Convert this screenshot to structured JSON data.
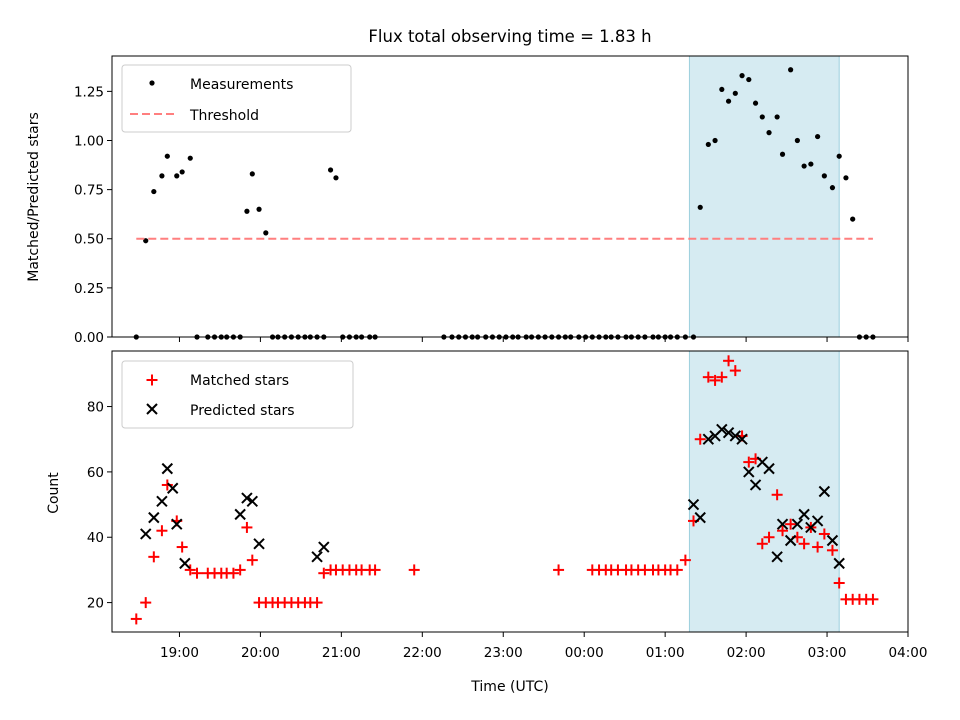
{
  "chart_data": [
    {
      "type": "scatter",
      "title": "Flux total observing time = 1.83 h",
      "xlabel": "",
      "ylabel": "Matched/Predicted stars",
      "xlim": [
        "18:10",
        "04:00"
      ],
      "ylim": [
        0,
        1.43
      ],
      "yticks": [
        0.0,
        0.25,
        0.5,
        0.75,
        1.0,
        1.25
      ],
      "ytick_labels": [
        "0.00",
        "0.25",
        "0.50",
        "0.75",
        "1.00",
        "1.25"
      ],
      "legend_position": "top-left",
      "highlight_span": [
        "01:18",
        "03:09"
      ],
      "series": [
        {
          "name": "Measurements",
          "marker": "dot",
          "color": "#000000",
          "x": [
            "18:28",
            "18:35",
            "18:41",
            "18:47",
            "18:51",
            "18:58",
            "19:02",
            "19:08",
            "19:13",
            "19:21",
            "19:26",
            "19:31",
            "19:35",
            "19:40",
            "19:45",
            "19:50",
            "19:54",
            "19:59",
            "20:04",
            "20:09",
            "20:13",
            "20:18",
            "20:23",
            "20:28",
            "20:33",
            "20:37",
            "20:42",
            "20:47",
            "20:52",
            "20:56",
            "21:01",
            "21:06",
            "21:11",
            "21:15",
            "21:21",
            "21:25",
            "22:16",
            "22:22",
            "22:27",
            "22:32",
            "22:37",
            "22:41",
            "22:47",
            "22:52",
            "22:57",
            "23:02",
            "23:07",
            "23:11",
            "23:17",
            "23:21",
            "23:26",
            "23:31",
            "23:36",
            "23:41",
            "23:46",
            "23:50",
            "23:56",
            "00:01",
            "00:06",
            "00:11",
            "00:16",
            "00:20",
            "00:25",
            "00:31",
            "00:35",
            "00:40",
            "00:45",
            "00:51",
            "00:55",
            "01:00",
            "01:04",
            "01:09",
            "01:15",
            "01:21",
            "01:26",
            "01:32",
            "01:37",
            "01:42",
            "01:47",
            "01:52",
            "01:57",
            "02:02",
            "02:07",
            "02:12",
            "02:17",
            "02:23",
            "02:27",
            "02:33",
            "02:38",
            "02:43",
            "02:48",
            "02:53",
            "02:58",
            "03:04",
            "03:09",
            "03:14",
            "03:19",
            "03:24",
            "03:29",
            "03:34"
          ],
          "y": [
            0.0,
            0.49,
            0.74,
            0.82,
            0.92,
            0.82,
            0.84,
            0.91,
            0.0,
            0.0,
            0.0,
            0.0,
            0.0,
            0.0,
            0.0,
            0.64,
            0.83,
            0.65,
            0.53,
            0.0,
            0.0,
            0.0,
            0.0,
            0.0,
            0.0,
            0.0,
            0.0,
            0.0,
            0.85,
            0.81,
            0.0,
            0.0,
            0.0,
            0.0,
            0.0,
            0.0,
            0.0,
            0.0,
            0.0,
            0.0,
            0.0,
            0.0,
            0.0,
            0.0,
            0.0,
            0.0,
            0.0,
            0.0,
            0.0,
            0.0,
            0.0,
            0.0,
            0.0,
            0.0,
            0.0,
            0.0,
            0.0,
            0.0,
            0.0,
            0.0,
            0.0,
            0.0,
            0.0,
            0.0,
            0.0,
            0.0,
            0.0,
            0.0,
            0.0,
            0.0,
            0.0,
            0.0,
            0.0,
            0.0,
            0.66,
            0.98,
            1.0,
            1.26,
            1.2,
            1.24,
            1.33,
            1.31,
            1.19,
            1.12,
            1.04,
            1.12,
            0.93,
            1.36,
            1.0,
            0.87,
            0.88,
            1.02,
            0.82,
            0.76,
            0.92,
            0.81,
            0.6,
            0.0,
            0.0,
            0.0
          ]
        },
        {
          "name": "Threshold",
          "marker": "dashed-line",
          "color": "#ff7f7f",
          "x": [
            "18:28",
            "03:34"
          ],
          "y": [
            0.5,
            0.5
          ]
        }
      ]
    },
    {
      "type": "scatter",
      "title": "",
      "xlabel": "Time (UTC)",
      "ylabel": "Count",
      "xlim": [
        "18:10",
        "04:00"
      ],
      "ylim": [
        11,
        97
      ],
      "yticks": [
        20,
        40,
        60,
        80
      ],
      "ytick_labels": [
        "20",
        "40",
        "60",
        "80"
      ],
      "xticks": [
        "19:00",
        "20:00",
        "21:00",
        "22:00",
        "23:00",
        "00:00",
        "01:00",
        "02:00",
        "03:00",
        "04:00"
      ],
      "legend_position": "top-left",
      "highlight_span": [
        "01:18",
        "03:09"
      ],
      "series": [
        {
          "name": "Matched stars",
          "marker": "plus",
          "color": "#ff0000",
          "x": [
            "18:28",
            "18:35",
            "18:41",
            "18:47",
            "18:51",
            "18:58",
            "19:02",
            "19:08",
            "19:13",
            "19:21",
            "19:26",
            "19:31",
            "19:35",
            "19:40",
            "19:45",
            "19:50",
            "19:54",
            "19:59",
            "20:04",
            "20:09",
            "20:13",
            "20:18",
            "20:23",
            "20:28",
            "20:33",
            "20:37",
            "20:42",
            "20:47",
            "20:52",
            "20:56",
            "21:01",
            "21:06",
            "21:11",
            "21:15",
            "21:21",
            "21:25",
            "21:54",
            "23:41",
            "00:06",
            "00:11",
            "00:16",
            "00:20",
            "00:25",
            "00:31",
            "00:35",
            "00:40",
            "00:45",
            "00:51",
            "00:55",
            "01:00",
            "01:04",
            "01:09",
            "01:15",
            "01:21",
            "01:26",
            "01:32",
            "01:37",
            "01:42",
            "01:47",
            "01:52",
            "01:57",
            "02:02",
            "02:07",
            "02:12",
            "02:17",
            "02:23",
            "02:27",
            "02:33",
            "02:38",
            "02:43",
            "02:48",
            "02:53",
            "02:58",
            "03:04",
            "03:09",
            "03:14",
            "03:19",
            "03:24",
            "03:29",
            "03:34"
          ],
          "y": [
            15,
            20,
            34,
            42,
            56,
            45,
            37,
            30,
            29,
            29,
            29,
            29,
            29,
            29,
            30,
            43,
            33,
            20,
            20,
            20,
            20,
            20,
            20,
            20,
            20,
            20,
            20,
            29,
            30,
            30,
            30,
            30,
            30,
            30,
            30,
            30,
            30,
            30,
            30,
            30,
            30,
            30,
            30,
            30,
            30,
            30,
            30,
            30,
            30,
            30,
            30,
            30,
            33,
            45,
            70,
            89,
            88,
            89,
            94,
            91,
            71,
            63,
            64,
            38,
            40,
            53,
            42,
            44,
            40,
            38,
            43,
            37,
            41,
            36,
            26,
            21,
            21,
            21,
            21,
            21
          ]
        },
        {
          "name": "Predicted stars",
          "marker": "x",
          "color": "#000000",
          "x": [
            "18:35",
            "18:41",
            "18:47",
            "18:51",
            "18:55",
            "18:58",
            "19:04",
            "19:45",
            "19:50",
            "19:54",
            "19:59",
            "20:42",
            "20:47",
            "01:21",
            "01:26",
            "01:32",
            "01:37",
            "01:42",
            "01:47",
            "01:52",
            "01:57",
            "02:02",
            "02:07",
            "02:12",
            "02:17",
            "02:23",
            "02:27",
            "02:33",
            "02:38",
            "02:43",
            "02:48",
            "02:53",
            "02:58",
            "03:04",
            "03:09"
          ],
          "y": [
            41,
            46,
            51,
            61,
            55,
            44,
            32,
            47,
            52,
            51,
            38,
            34,
            37,
            50,
            46,
            70,
            71,
            73,
            72,
            71,
            70,
            60,
            56,
            63,
            61,
            34,
            44,
            39,
            44,
            47,
            43,
            45,
            54,
            39,
            32
          ]
        }
      ]
    }
  ]
}
